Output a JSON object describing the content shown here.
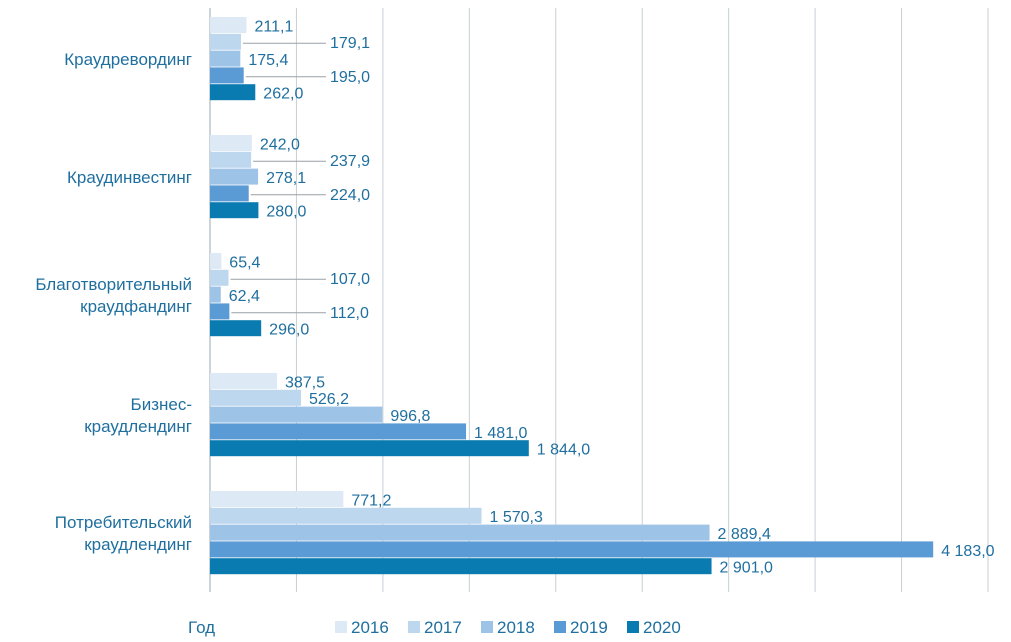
{
  "chart_data": {
    "type": "bar",
    "orientation": "horizontal",
    "categories": [
      "Краудревординг",
      "Краудинвестинг",
      "Благотворительный краудфандинг",
      "Бизнес-краудлендинг",
      "Потребительский краудлендинг"
    ],
    "category_lines": [
      [
        "Краудревординг"
      ],
      [
        "Краудинвестинг"
      ],
      [
        "Благотворительный",
        "краудфандинг"
      ],
      [
        "Бизнес-",
        "краудлендинг"
      ],
      [
        "Потребительский",
        "краудлендинг"
      ]
    ],
    "series": [
      {
        "name": "2016",
        "color": "#dde9f5",
        "values": [
          211.1,
          242.0,
          65.4,
          387.5,
          771.2
        ],
        "labels": [
          "211,1",
          "242,0",
          "65,4",
          "387,5",
          "771,2"
        ]
      },
      {
        "name": "2017",
        "color": "#bdd7ee",
        "values": [
          179.1,
          237.9,
          107.0,
          526.2,
          1570.3
        ],
        "labels": [
          "179,1",
          "237,9",
          "107,0",
          "526,2",
          "1 570,3"
        ]
      },
      {
        "name": "2018",
        "color": "#9dc3e6",
        "values": [
          175.4,
          278.1,
          62.4,
          996.8,
          2889.4
        ],
        "labels": [
          "175,4",
          "278,1",
          "62,4",
          "996,8",
          "2 889,4"
        ]
      },
      {
        "name": "2019",
        "color": "#5b9bd5",
        "values": [
          195.0,
          224.0,
          112.0,
          1481.0,
          4183.0
        ],
        "labels": [
          "195,0",
          "224,0",
          "112,0",
          "1 481,0",
          "4 183,0"
        ]
      },
      {
        "name": "2020",
        "color": "#0a7bb0",
        "values": [
          262.0,
          280.0,
          296.0,
          1844.0,
          2901.0
        ],
        "labels": [
          "262,0",
          "280,0",
          "296,0",
          "1 844,0",
          "2 901,0"
        ]
      }
    ],
    "xlim": [
      0,
      4500
    ],
    "grid": true,
    "legend_title": "Год",
    "legend_position": "bottom",
    "label_color": "#1f6f9f"
  }
}
